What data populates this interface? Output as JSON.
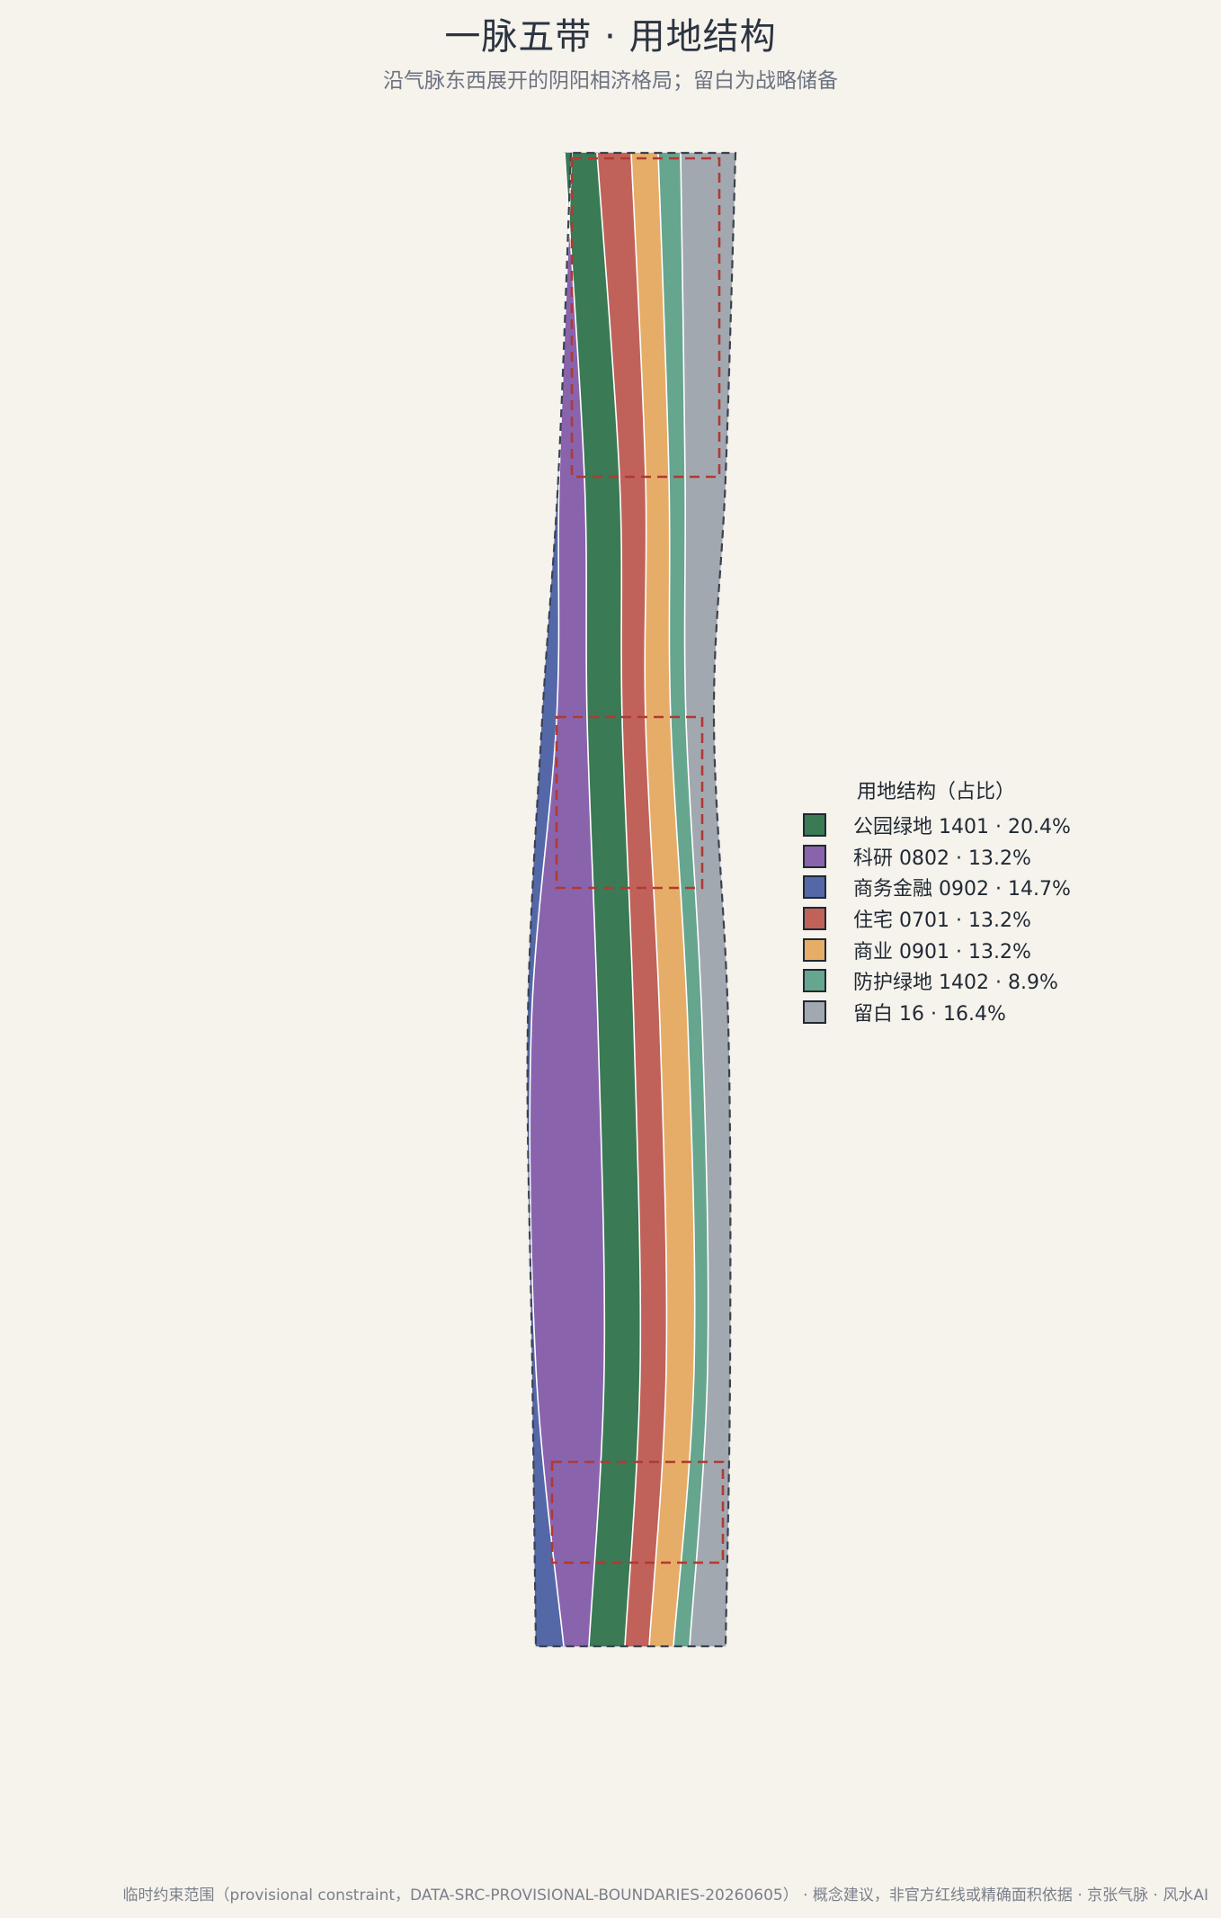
{
  "title": "一脉五带 · 用地结构",
  "subtitle": "沿气脉东西展开的阴阳相济格局；留白为战略储备",
  "legend": {
    "title": "用地结构（占比）",
    "items": [
      {
        "name": "公园绿地",
        "code": "1401",
        "pct": "20.4%",
        "label": "公园绿地 1401 · 20.4%",
        "color": "#3a7a55"
      },
      {
        "name": "科研",
        "code": "0802",
        "pct": "13.2%",
        "label": "科研 0802 · 13.2%",
        "color": "#8a63ad"
      },
      {
        "name": "商务金融",
        "code": "0902",
        "pct": "14.7%",
        "label": "商务金融 0902 · 14.7%",
        "color": "#5468a8"
      },
      {
        "name": "住宅",
        "code": "0701",
        "pct": "13.2%",
        "label": "住宅 0701 · 13.2%",
        "color": "#c0625a"
      },
      {
        "name": "商业",
        "code": "0901",
        "pct": "13.2%",
        "label": "商业 0901 · 13.2%",
        "color": "#e6ad68"
      },
      {
        "name": "防护绿地",
        "code": "1402",
        "pct": "8.9%",
        "label": "防护绿地 1402 · 8.9%",
        "color": "#66a58e"
      },
      {
        "name": "留白",
        "code": "16",
        "pct": "16.4%",
        "label": "留白 16 · 16.4%",
        "color": "#a2a8b0"
      }
    ]
  },
  "footnote": "临时约束范围（provisional constraint，DATA-SRC-PROVISIONAL-BOUNDARIES-20260605） · 概念建议，非官方红线或精确面积依据 · 京张气脉 · 风水AI",
  "colors": {
    "background": "#f6f2ec",
    "boundary_dash": "#3a4250",
    "zone_dash": "#b03a32",
    "band_separator": "#ffffff"
  }
}
